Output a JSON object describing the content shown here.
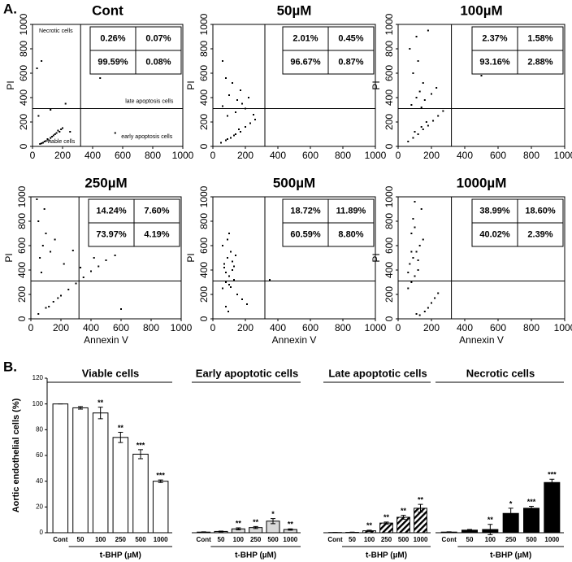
{
  "panel_labels": [
    "A.",
    "B."
  ],
  "chart_data": [
    {
      "type": "scatter",
      "title": "Cont",
      "ylabel": "PI",
      "xlim": [
        0,
        1000
      ],
      "ylim": [
        0,
        1000
      ],
      "xticks": [
        0,
        200,
        400,
        600,
        800,
        1000
      ],
      "yticks": [
        0,
        200,
        400,
        600,
        800,
        1000
      ],
      "gate_x": 320,
      "gate_y": 310,
      "color": "#000000",
      "x": [
        50,
        80,
        100,
        120,
        140,
        160,
        180,
        200,
        70,
        110,
        130,
        150,
        170,
        190,
        60,
        90,
        40,
        120,
        60,
        220,
        550,
        450,
        250,
        30
      ],
      "y": [
        20,
        40,
        60,
        70,
        90,
        110,
        120,
        150,
        30,
        50,
        80,
        100,
        130,
        140,
        25,
        45,
        250,
        300,
        700,
        350,
        110,
        560,
        120,
        640
      ],
      "quadrant_labels": [
        "Necrotic cells",
        "late apoptosis cells",
        "viable cells",
        "early apoptosis cells"
      ],
      "quadrants": {
        "values": [
          0.26,
          0.07,
          99.59,
          0.08
        ],
        "value_labels": [
          "0.26%",
          "0.07%",
          "99.59%",
          "0.08%"
        ]
      }
    },
    {
      "type": "scatter",
      "title": "50µM",
      "ylabel": "PI",
      "xlim": [
        0,
        1000
      ],
      "ylim": [
        0,
        1000
      ],
      "xticks": [
        0,
        200,
        400,
        600,
        800,
        1000
      ],
      "yticks": [
        0,
        200,
        400,
        600,
        800,
        1000
      ],
      "gate_x": 320,
      "gate_y": 310,
      "color": "#000000",
      "x": [
        50,
        80,
        110,
        140,
        170,
        200,
        230,
        260,
        90,
        130,
        160,
        60,
        100,
        150,
        120,
        200,
        80,
        170,
        250,
        140,
        90,
        220,
        60,
        180
      ],
      "y": [
        30,
        50,
        70,
        100,
        120,
        160,
        190,
        220,
        60,
        90,
        140,
        330,
        420,
        380,
        520,
        310,
        560,
        460,
        260,
        280,
        250,
        400,
        700,
        350
      ],
      "quadrants": {
        "values": [
          2.01,
          0.45,
          96.67,
          0.87
        ],
        "value_labels": [
          "2.01%",
          "0.45%",
          "96.67%",
          "0.87%"
        ]
      }
    },
    {
      "type": "scatter",
      "title": "100µM",
      "ylabel": "PI",
      "xlim": [
        0,
        1000
      ],
      "ylim": [
        0,
        1000
      ],
      "xticks": [
        0,
        200,
        400,
        600,
        800,
        1000
      ],
      "yticks": [
        0,
        200,
        400,
        600,
        800,
        1000
      ],
      "gate_x": 320,
      "gate_y": 310,
      "color": "#000000",
      "x": [
        60,
        90,
        120,
        150,
        180,
        210,
        240,
        270,
        100,
        140,
        170,
        80,
        110,
        130,
        150,
        90,
        120,
        160,
        200,
        70,
        110,
        140,
        230,
        500,
        180
      ],
      "y": [
        40,
        70,
        100,
        140,
        170,
        210,
        250,
        290,
        120,
        160,
        200,
        340,
        400,
        450,
        520,
        600,
        700,
        380,
        430,
        800,
        900,
        320,
        480,
        580,
        950
      ],
      "quadrants": {
        "values": [
          2.37,
          1.58,
          93.16,
          2.88
        ],
        "value_labels": [
          "2.37%",
          "1.58%",
          "93.16%",
          "2.88%"
        ]
      }
    },
    {
      "type": "scatter",
      "title": "250µM",
      "ylabel": "PI",
      "xlabel": "Annexin V",
      "xlim": [
        0,
        1000
      ],
      "ylim": [
        0,
        1000
      ],
      "xticks": [
        0,
        200,
        400,
        600,
        800,
        1000
      ],
      "yticks": [
        0,
        200,
        400,
        600,
        800,
        1000
      ],
      "gate_x": 320,
      "gate_y": 310,
      "color": "#000000",
      "x": [
        50,
        100,
        150,
        200,
        250,
        300,
        350,
        400,
        450,
        500,
        120,
        180,
        60,
        80,
        100,
        130,
        50,
        90,
        160,
        220,
        70,
        40,
        420,
        560,
        600,
        280,
        330
      ],
      "y": [
        40,
        90,
        140,
        190,
        240,
        290,
        340,
        390,
        430,
        480,
        100,
        170,
        500,
        600,
        700,
        550,
        800,
        900,
        650,
        450,
        380,
        980,
        500,
        520,
        80,
        560,
        420
      ],
      "quadrants": {
        "values": [
          14.24,
          7.6,
          73.97,
          4.19
        ],
        "value_labels": [
          "14.24%",
          "7.60%",
          "73.97%",
          "4.19%"
        ]
      }
    },
    {
      "type": "scatter",
      "title": "500µM",
      "ylabel": "PI",
      "xlabel": "Annexin V",
      "xlim": [
        0,
        1000
      ],
      "ylim": [
        0,
        1000
      ],
      "xticks": [
        0,
        200,
        400,
        600,
        800,
        1000
      ],
      "yticks": [
        0,
        200,
        400,
        600,
        800,
        1000
      ],
      "gate_x": 320,
      "gate_y": 310,
      "color": "#000000",
      "x": [
        60,
        80,
        100,
        120,
        70,
        90,
        110,
        130,
        80,
        100,
        60,
        120,
        90,
        150,
        180,
        210,
        100,
        70,
        140,
        110,
        80,
        95,
        350,
        130
      ],
      "y": [
        250,
        300,
        350,
        400,
        450,
        500,
        550,
        320,
        380,
        280,
        600,
        470,
        650,
        200,
        160,
        120,
        700,
        420,
        520,
        260,
        100,
        60,
        320,
        430
      ],
      "quadrants": {
        "values": [
          18.72,
          11.89,
          60.59,
          8.8
        ],
        "value_labels": [
          "18.72%",
          "11.89%",
          "60.59%",
          "8.80%"
        ]
      }
    },
    {
      "type": "scatter",
      "title": "1000µM",
      "ylabel": "PI",
      "xlabel": "Annexin V",
      "xlim": [
        0,
        1000
      ],
      "ylim": [
        0,
        1000
      ],
      "xticks": [
        0,
        200,
        400,
        600,
        800,
        1000
      ],
      "yticks": [
        0,
        200,
        400,
        600,
        800,
        1000
      ],
      "gate_x": 320,
      "gate_y": 310,
      "color": "#000000",
      "x": [
        60,
        80,
        100,
        120,
        70,
        90,
        110,
        130,
        150,
        80,
        100,
        60,
        120,
        90,
        140,
        160,
        180,
        200,
        220,
        240,
        110,
        130,
        100,
        80
      ],
      "y": [
        250,
        300,
        350,
        400,
        450,
        500,
        550,
        600,
        650,
        700,
        750,
        380,
        480,
        820,
        900,
        60,
        90,
        130,
        170,
        210,
        40,
        30,
        960,
        550
      ],
      "quadrants": {
        "values": [
          38.99,
          18.6,
          40.02,
          2.39
        ],
        "value_labels": [
          "38.99%",
          "18.60%",
          "40.02%",
          "2.39%"
        ]
      }
    },
    {
      "type": "bar",
      "ylabel": "Aortic endothelial cells (%)",
      "xlabel": "t-BHP (µM)",
      "categories": [
        "Cont",
        "50",
        "100",
        "250",
        "500",
        "1000"
      ],
      "ylim": [
        0,
        120
      ],
      "yticks": [
        0,
        20,
        40,
        60,
        80,
        100,
        120
      ],
      "series": [
        {
          "name": "Viable cells",
          "color": "#ffffff",
          "pattern": "solid",
          "values": [
            100,
            97,
            93,
            74,
            61,
            40
          ],
          "errors": [
            0,
            1,
            4.5,
            4,
            3.5,
            1
          ],
          "annotations": [
            null,
            null,
            "**",
            "**",
            "***",
            "***"
          ]
        },
        {
          "name": "Early apoptotic cells",
          "color": "#d9d9d9",
          "pattern": "solid",
          "values": [
            0.5,
            1,
            3,
            4,
            9,
            2.5
          ],
          "errors": [
            0.2,
            0.3,
            0.8,
            0.8,
            2,
            0.5
          ],
          "annotations": [
            null,
            null,
            "**",
            "**",
            "*",
            "**"
          ]
        },
        {
          "name": "Late apoptotic cells",
          "color": "#000000",
          "pattern": "hatch",
          "values": [
            0.2,
            0.3,
            1.5,
            7.5,
            12,
            19
          ],
          "errors": [
            0,
            0.2,
            0.5,
            0.8,
            1.5,
            3
          ],
          "annotations": [
            null,
            null,
            "**",
            "**",
            "**",
            "**"
          ]
        },
        {
          "name": "Necrotic cells",
          "color": "#000000",
          "pattern": "solid",
          "values": [
            0.5,
            2,
            2.5,
            15,
            19,
            39
          ],
          "errors": [
            0.2,
            0.5,
            4,
            4,
            1.5,
            2.5
          ],
          "annotations": [
            null,
            null,
            "**",
            "*",
            "***",
            "***"
          ]
        }
      ]
    }
  ]
}
